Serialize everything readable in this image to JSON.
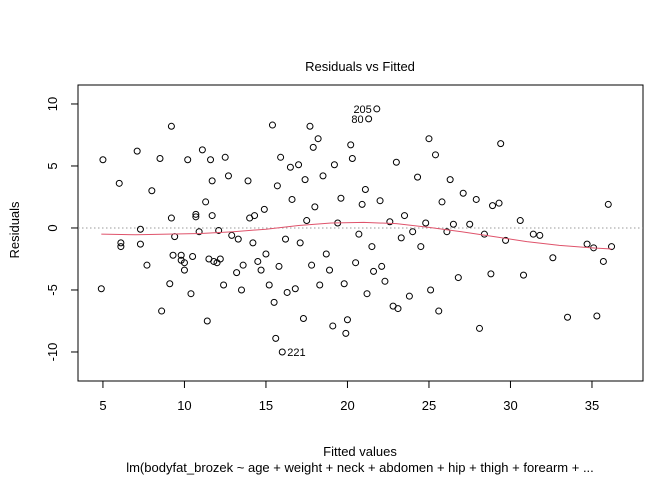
{
  "chart_data": {
    "type": "scatter",
    "title": "Residuals vs Fitted",
    "x_label": "Fitted values",
    "y_label": "Residuals",
    "subtitle": "lm(bodyfat_brozek ~ age + weight + neck + abdomen + hip + thigh + forearm + ...",
    "xlim": [
      3.47,
      38.13
    ],
    "ylim": [
      -12.34,
      11.53
    ],
    "xticks": [
      5,
      10,
      15,
      20,
      25,
      30,
      35
    ],
    "yticks": [
      -10,
      -5,
      0,
      5,
      10
    ],
    "reference_line": 0,
    "point_color": "#000000",
    "x": [
      4.9,
      5.0,
      6.0,
      6.1,
      6.1,
      7.1,
      7.3,
      7.3,
      7.7,
      8.0,
      8.5,
      8.6,
      9.1,
      9.2,
      9.2,
      9.3,
      9.4,
      9.8,
      9.8,
      10.0,
      10.0,
      10.2,
      10.4,
      10.5,
      10.7,
      10.7,
      10.9,
      11.1,
      11.3,
      11.4,
      11.5,
      11.6,
      11.7,
      11.7,
      11.8,
      12.0,
      12.1,
      12.2,
      12.4,
      12.5,
      12.7,
      12.9,
      13.2,
      13.3,
      13.5,
      13.6,
      13.9,
      14.0,
      14.2,
      14.3,
      14.5,
      14.7,
      14.9,
      15.0,
      15.2,
      15.4,
      15.5,
      15.6,
      15.7,
      15.8,
      15.9,
      16.2,
      16.3,
      16.5,
      16.6,
      16.8,
      17.0,
      17.1,
      17.3,
      17.4,
      17.5,
      17.7,
      17.8,
      17.9,
      18.0,
      18.2,
      18.3,
      18.5,
      18.7,
      18.9,
      19.1,
      19.2,
      19.4,
      19.6,
      19.8,
      19.9,
      20.0,
      20.2,
      20.3,
      20.5,
      20.7,
      20.9,
      21.1,
      21.2,
      21.5,
      21.6,
      22.0,
      22.1,
      22.3,
      22.6,
      22.8,
      23.0,
      23.1,
      23.3,
      23.5,
      23.8,
      24.0,
      24.3,
      24.5,
      24.8,
      25.0,
      25.1,
      25.4,
      25.6,
      25.8,
      26.1,
      26.3,
      26.5,
      26.8,
      27.1,
      27.5,
      27.9,
      28.1,
      28.4,
      28.8,
      28.9,
      29.3,
      29.4,
      29.7,
      30.6,
      30.8,
      31.4,
      31.8,
      32.6,
      33.5,
      34.7,
      35.1,
      35.3,
      35.7,
      36.0,
      36.2
    ],
    "y": [
      -4.9,
      5.5,
      3.6,
      -1.2,
      -1.5,
      6.2,
      -1.3,
      -0.1,
      -3.0,
      3.0,
      5.6,
      -6.7,
      -4.5,
      0.8,
      8.2,
      -2.2,
      -0.7,
      -2.2,
      -2.6,
      -3.4,
      -2.8,
      5.5,
      -5.3,
      -2.3,
      1.1,
      0.9,
      -0.3,
      6.3,
      2.1,
      -7.5,
      -2.5,
      5.5,
      3.8,
      1.0,
      -2.7,
      -2.8,
      -0.2,
      -2.5,
      -4.6,
      5.7,
      4.2,
      -0.6,
      -3.6,
      -0.9,
      -5.0,
      -3.0,
      3.8,
      0.8,
      -1.2,
      1.0,
      -2.7,
      -3.4,
      1.5,
      -2.1,
      -4.6,
      8.3,
      -6.0,
      -8.9,
      3.4,
      -3.1,
      5.7,
      -0.9,
      -5.2,
      4.9,
      2.3,
      -4.9,
      5.1,
      -1.2,
      -7.3,
      3.9,
      0.6,
      8.2,
      -3.0,
      6.5,
      1.7,
      7.2,
      -4.6,
      4.2,
      -2.1,
      -3.4,
      -7.9,
      5.1,
      0.4,
      2.4,
      -4.5,
      -8.5,
      -7.4,
      6.7,
      5.6,
      -2.8,
      -0.5,
      1.9,
      3.1,
      -5.3,
      -1.5,
      -3.5,
      2.2,
      -3.1,
      -4.3,
      0.5,
      -6.3,
      5.3,
      -6.5,
      -0.8,
      1.0,
      -5.5,
      -0.3,
      4.1,
      -1.5,
      0.4,
      7.2,
      -5.0,
      5.9,
      -6.7,
      2.1,
      -0.3,
      3.9,
      0.3,
      -4.0,
      2.8,
      0.3,
      2.3,
      -8.1,
      -0.5,
      -3.7,
      1.8,
      2.0,
      6.8,
      -1.0,
      0.6,
      -3.8,
      -0.5,
      -0.6,
      -2.4,
      -7.2,
      -1.3,
      -1.6,
      -7.1,
      -2.7,
      1.9,
      -1.5
    ],
    "labeled_points": [
      {
        "label": "205",
        "x": 21.8,
        "y": 9.6
      },
      {
        "label": "80",
        "x": 21.3,
        "y": 8.8
      },
      {
        "label": "221",
        "x": 16.0,
        "y": -10.0
      }
    ],
    "smoother": {
      "color": "#df536b",
      "x": [
        4.9,
        7,
        9,
        11,
        13,
        15,
        17,
        19,
        21,
        23,
        25,
        27,
        29,
        31,
        33,
        35,
        36.2
      ],
      "y": [
        -0.5,
        -0.55,
        -0.5,
        -0.45,
        -0.3,
        -0.1,
        0.2,
        0.4,
        0.45,
        0.35,
        0.05,
        -0.3,
        -0.7,
        -1.1,
        -1.4,
        -1.6,
        -1.7
      ]
    }
  }
}
